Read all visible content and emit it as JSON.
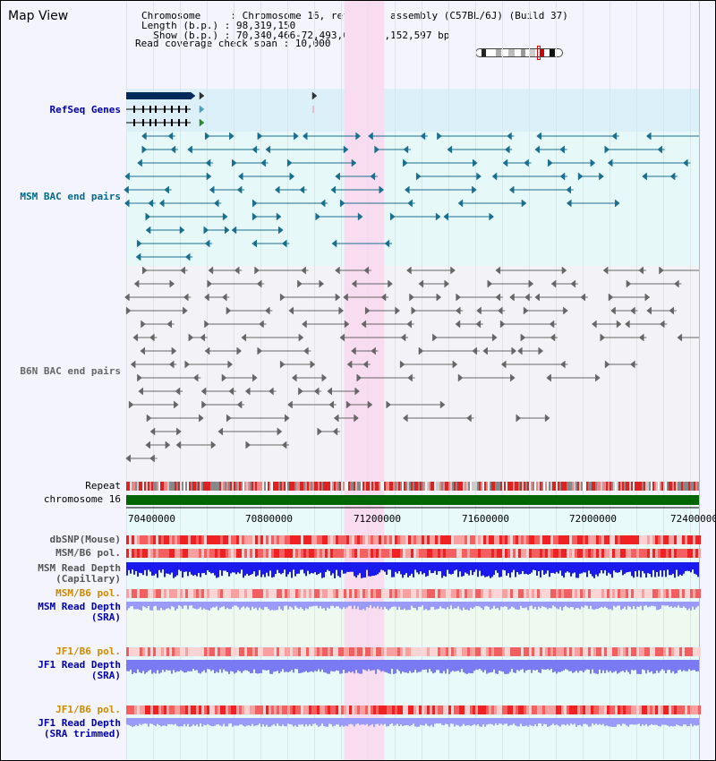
{
  "view_title": "Map View",
  "header": {
    "line1": "Chromosome     : Chromosome 16, reference assembly (C57BL/6J) (Build 37)",
    "line2": "Length (b.p.) : 98,319,150",
    "line3": "  Show (b.p.) : 70,340,466-72,493,062 : 2,152,597 bp",
    "line4": "Read coverage check span : 10,000"
  },
  "colors": {
    "highlight": "#f8dcf0",
    "gene_band": "#dcf0fa",
    "msm_band": "#e6f8f8",
    "gene_dark": "#002a5c",
    "msm_pair": "#1a6e8e",
    "b6n_pair": "#666666",
    "chromosome": "#006600",
    "label_blue": "#0000aa",
    "label_teal": "#006a8a",
    "label_orange": "#cc8a00"
  },
  "tracks": {
    "refseq": "RefSeq Genes",
    "msm_bac": "MSM BAC end pairs",
    "b6n_bac": "B6N BAC end pairs",
    "repeat": "Repeat",
    "chromosome": "chromosome 16",
    "dbsnp": "dbSNP(Mouse)",
    "msm_pol_1": "MSM/B6 pol.",
    "msm_depth_cap_1": "MSM Read Depth",
    "msm_depth_cap_2": "(Capillary)",
    "msm_pol_2": "MSM/B6 pol.",
    "msm_depth_sra_1": "MSM Read Depth",
    "msm_depth_sra_2": "(SRA)",
    "jf1_pol_1": "JF1/B6 pol.",
    "jf1_depth_1": "JF1 Read Depth",
    "jf1_depth_2": "(SRA)",
    "jf1_pol_2": "JF1/B6 pol.",
    "jf1_trim_1": "JF1 Read Depth",
    "jf1_trim_2": "(SRA trimmed)"
  },
  "axis": {
    "ticks": [
      "70400000",
      "70800000",
      "71200000",
      "71600000",
      "72000000",
      "72400000"
    ],
    "range": [
      70340466,
      72493062
    ],
    "highlight_range": [
      71160000,
      71310000
    ]
  },
  "icons": {
    "forward": "right-triangle-icon",
    "reverse": "left-triangle-icon"
  }
}
